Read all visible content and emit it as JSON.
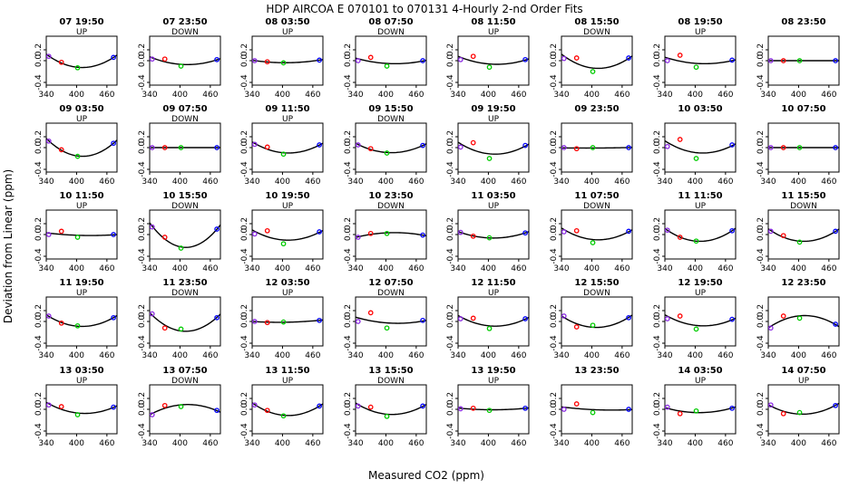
{
  "title": "HDP   AIRCOA E   070101 to 070131   4-Hourly 2-nd Order Fits",
  "xlabel": "Measured CO2 (ppm)",
  "ylabel": "Deviation from Linear (ppm)",
  "colors": {
    "low": "#8a2be2",
    "mid": "#ff0000",
    "third": "#00cc00",
    "high": "#0000ff",
    "fit": "#000000",
    "axes": "#000000"
  },
  "chart_data": {
    "type": "scatter",
    "title": "HDP   AIRCOA E   070101 to 070131   4-Hourly 2-nd Order Fits",
    "xlabel": "Measured CO2 (ppm)",
    "ylabel": "Deviation from Linear (ppm)",
    "xlim": [
      340,
      480
    ],
    "ylim": [
      -0.45,
      0.45
    ],
    "xticks": [
      "340",
      "400",
      "460"
    ],
    "yticks": [
      "-0.4",
      "0.0",
      "0.2"
    ],
    "grid": false,
    "standards_x": [
      345,
      370,
      402,
      473
    ],
    "panels": [
      {
        "label": "07 19:50",
        "dir": "UP",
        "y": [
          0.08,
          -0.03,
          -0.13,
          0.06
        ]
      },
      {
        "label": "07 23:50",
        "dir": "DOWN",
        "y": [
          0.03,
          0.03,
          -0.1,
          0.02
        ]
      },
      {
        "label": "08 03:50",
        "dir": "UP",
        "y": [
          0.0,
          -0.02,
          -0.04,
          0.01
        ]
      },
      {
        "label": "08 07:50",
        "dir": "DOWN",
        "y": [
          0.0,
          0.06,
          -0.1,
          0.0
        ]
      },
      {
        "label": "08 11:50",
        "dir": "UP",
        "y": [
          0.02,
          0.08,
          -0.12,
          0.02
        ]
      },
      {
        "label": "08 15:50",
        "dir": "DOWN",
        "y": [
          0.04,
          0.05,
          -0.2,
          0.05
        ]
      },
      {
        "label": "08 19:50",
        "dir": "UP",
        "y": [
          0.0,
          0.1,
          -0.12,
          0.01
        ]
      },
      {
        "label": "08 23:50",
        "dir": "",
        "y": [
          0.0,
          0.0,
          0.0,
          0.0
        ]
      },
      {
        "label": "09 03:50",
        "dir": "UP",
        "y": [
          0.12,
          -0.04,
          -0.16,
          0.08
        ]
      },
      {
        "label": "09 07:50",
        "dir": "DOWN",
        "y": [
          0.0,
          0.0,
          0.0,
          0.0
        ]
      },
      {
        "label": "09 11:50",
        "dir": "UP",
        "y": [
          0.06,
          0.01,
          -0.12,
          0.05
        ]
      },
      {
        "label": "09 15:50",
        "dir": "DOWN",
        "y": [
          0.05,
          -0.02,
          -0.1,
          0.04
        ]
      },
      {
        "label": "09 19:50",
        "dir": "UP",
        "y": [
          0.01,
          0.09,
          -0.2,
          0.04
        ]
      },
      {
        "label": "09 23:50",
        "dir": "",
        "y": [
          0.0,
          -0.02,
          0.0,
          0.0
        ]
      },
      {
        "label": "10 03:50",
        "dir": "",
        "y": [
          0.02,
          0.15,
          -0.2,
          0.05
        ]
      },
      {
        "label": "10 07:50",
        "dir": "",
        "y": [
          0.0,
          0.0,
          0.0,
          0.0
        ]
      },
      {
        "label": "10 11:50",
        "dir": "UP",
        "y": [
          0.0,
          0.06,
          -0.05,
          0.0
        ]
      },
      {
        "label": "10 15:50",
        "dir": "DOWN",
        "y": [
          0.14,
          -0.05,
          -0.25,
          0.1
        ]
      },
      {
        "label": "10 19:50",
        "dir": "UP",
        "y": [
          0.01,
          0.07,
          -0.17,
          0.05
        ]
      },
      {
        "label": "10 23:50",
        "dir": "DOWN",
        "y": [
          -0.05,
          0.02,
          0.02,
          -0.01
        ]
      },
      {
        "label": "11 03:50",
        "dir": "UP",
        "y": [
          0.04,
          -0.03,
          -0.06,
          0.03
        ]
      },
      {
        "label": "11 07:50",
        "dir": "DOWN",
        "y": [
          0.05,
          0.07,
          -0.15,
          0.06
        ]
      },
      {
        "label": "11 11:50",
        "dir": "UP",
        "y": [
          0.08,
          -0.05,
          -0.12,
          0.07
        ]
      },
      {
        "label": "11 15:50",
        "dir": "DOWN",
        "y": [
          0.06,
          -0.02,
          -0.14,
          0.06
        ]
      },
      {
        "label": "11 19:50",
        "dir": "UP",
        "y": [
          0.1,
          -0.03,
          -0.08,
          0.07
        ]
      },
      {
        "label": "11 23:50",
        "dir": "DOWN",
        "y": [
          0.14,
          -0.12,
          -0.14,
          0.07
        ]
      },
      {
        "label": "12 03:50",
        "dir": "UP",
        "y": [
          0.0,
          -0.02,
          -0.01,
          0.02
        ]
      },
      {
        "label": "12 07:50",
        "dir": "DOWN",
        "y": [
          0.0,
          0.16,
          -0.12,
          0.02
        ]
      },
      {
        "label": "12 11:50",
        "dir": "UP",
        "y": [
          0.05,
          0.06,
          -0.13,
          0.05
        ]
      },
      {
        "label": "12 15:50",
        "dir": "DOWN",
        "y": [
          0.1,
          -0.1,
          -0.07,
          0.07
        ]
      },
      {
        "label": "12 19:50",
        "dir": "UP",
        "y": [
          0.05,
          0.1,
          -0.14,
          0.04
        ]
      },
      {
        "label": "12 23:50",
        "dir": "",
        "y": [
          -0.12,
          0.1,
          0.06,
          -0.05
        ]
      },
      {
        "label": "13 03:50",
        "dir": "UP",
        "y": [
          0.08,
          0.05,
          -0.1,
          0.04
        ]
      },
      {
        "label": "13 07:50",
        "dir": "DOWN",
        "y": [
          -0.1,
          0.07,
          0.05,
          -0.02
        ]
      },
      {
        "label": "13 11:50",
        "dir": "UP",
        "y": [
          0.08,
          -0.02,
          -0.12,
          0.06
        ]
      },
      {
        "label": "13 15:50",
        "dir": "DOWN",
        "y": [
          0.06,
          0.04,
          -0.13,
          0.06
        ]
      },
      {
        "label": "13 19:50",
        "dir": "UP",
        "y": [
          0.01,
          0.02,
          -0.02,
          0.02
        ]
      },
      {
        "label": "13 23:50",
        "dir": "",
        "y": [
          0.0,
          0.1,
          -0.06,
          0.0
        ]
      },
      {
        "label": "14 03:50",
        "dir": "UP",
        "y": [
          0.04,
          -0.08,
          -0.03,
          0.02
        ]
      },
      {
        "label": "14 07:50",
        "dir": "UP",
        "y": [
          0.08,
          -0.08,
          -0.06,
          0.07
        ]
      }
    ]
  }
}
